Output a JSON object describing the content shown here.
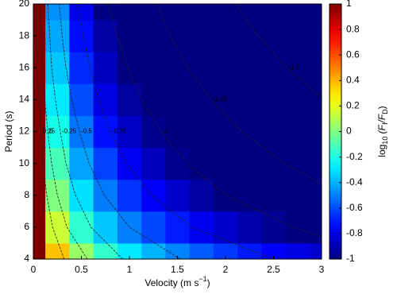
{
  "chart_data": {
    "type": "contour",
    "x_label": [
      "Velocity (m s",
      "−1",
      ")"
    ],
    "y_label": "Period (s)",
    "colorbar_label": [
      "log",
      "10",
      " (F",
      "I",
      "/F",
      "D",
      ")"
    ],
    "x": [
      0,
      0.25,
      0.5,
      0.75,
      1,
      1.25,
      1.5,
      1.75,
      2,
      2.25,
      2.5,
      2.75,
      3
    ],
    "y": [
      4,
      6,
      8,
      10,
      12,
      14,
      16,
      18,
      20
    ],
    "z": [
      [
        1,
        0.37,
        0.05,
        -0.15,
        -0.29,
        -0.4,
        -0.49,
        -0.57,
        -0.64,
        -0.7,
        -0.75,
        -0.8,
        -0.84
      ],
      [
        1,
        0.15,
        -0.16,
        -0.36,
        -0.5,
        -0.61,
        -0.7,
        -0.78,
        -0.85,
        -0.91,
        -0.96,
        -1.01,
        -1.06
      ],
      [
        1,
        0.0,
        -0.31,
        -0.51,
        -0.65,
        -0.76,
        -0.85,
        -0.93,
        -1.0,
        -1.06,
        -1.11,
        -1.16,
        -1.21
      ],
      [
        1,
        -0.11,
        -0.43,
        -0.62,
        -0.77,
        -0.88,
        -0.97,
        -1.05,
        -1.11,
        -1.17,
        -1.23,
        -1.28,
        -1.32
      ],
      [
        1,
        -0.21,
        -0.52,
        -0.72,
        -0.86,
        -0.97,
        -1.06,
        -1.14,
        -1.21,
        -1.27,
        -1.32,
        -1.37,
        -1.42
      ],
      [
        1,
        -0.29,
        -0.6,
        -0.8,
        -0.94,
        -1.05,
        -1.14,
        -1.22,
        -1.29,
        -1.35,
        -1.4,
        -1.45,
        -1.5
      ],
      [
        1,
        -0.36,
        -0.67,
        -0.87,
        -1.01,
        -1.12,
        -1.21,
        -1.29,
        -1.36,
        -1.42,
        -1.47,
        -1.52,
        -1.57
      ],
      [
        1,
        -0.42,
        -0.73,
        -0.93,
        -1.07,
        -1.18,
        -1.27,
        -1.35,
        -1.42,
        -1.48,
        -1.53,
        -1.58,
        -1.63
      ],
      [
        1,
        -0.47,
        -0.79,
        -0.99,
        -1.13,
        -1.24,
        -1.33,
        -1.41,
        -1.48,
        -1.54,
        -1.59,
        -1.64,
        -1.68
      ]
    ],
    "contours": [
      {
        "level": 0.25,
        "x": [
          0.32,
          0.2,
          0.14,
          0.1,
          0.08,
          0.06,
          0.04,
          0.03,
          0.03
        ],
        "y": [
          4,
          6,
          8,
          10,
          12,
          14,
          16,
          18,
          20
        ]
      },
      {
        "level": 0,
        "x": [
          0.56,
          0.35,
          0.25,
          0.19,
          0.15,
          0.12,
          0.1,
          0.08,
          0.07
        ],
        "y": [
          4,
          6,
          8,
          10,
          12,
          14,
          16,
          18,
          20
        ]
      },
      {
        "level": -0.25,
        "x": [
          0.93,
          0.6,
          0.44,
          0.34,
          0.28,
          0.23,
          0.19,
          0.17,
          0.15
        ],
        "y": [
          4,
          6,
          8,
          10,
          12,
          14,
          16,
          18,
          20
        ]
      },
      {
        "level": -0.5,
        "x": [
          1.53,
          1.0,
          0.74,
          0.58,
          0.48,
          0.4,
          0.34,
          0.3,
          0.27
        ],
        "y": [
          4,
          6,
          8,
          10,
          12,
          14,
          16,
          18,
          20
        ]
      },
      {
        "level": -0.75,
        "x": [
          2.5,
          1.65,
          1.23,
          0.97,
          0.8,
          0.68,
          0.59,
          0.52,
          0.46
        ],
        "y": [
          4,
          6,
          8,
          10,
          12,
          14,
          16,
          18,
          20
        ]
      },
      {
        "level": -1,
        "x": [
          3,
          2.7,
          2.01,
          1.6,
          1.33,
          1.13,
          0.98,
          0.87,
          0.78
        ],
        "y": [
          5.41,
          6,
          8,
          10,
          12,
          14,
          16,
          18,
          20
        ]
      },
      {
        "level": -1.25,
        "x": [
          3,
          2.61,
          2.17,
          1.85,
          1.61,
          1.43,
          1.28
        ],
        "y": [
          8.72,
          10,
          12,
          14,
          16,
          18,
          20
        ]
      },
      {
        "level": -1.5,
        "x": [
          3,
          2.64,
          2.34,
          2.1
        ],
        "y": [
          14.1,
          16,
          18,
          20
        ]
      }
    ],
    "xlim": [
      0,
      3
    ],
    "ylim": [
      4,
      20
    ],
    "xticks": [
      0,
      0.5,
      1,
      1.5,
      2,
      2.5,
      3
    ],
    "yticks": [
      4,
      6,
      8,
      10,
      12,
      14,
      16,
      18,
      20
    ],
    "clim": [
      -1,
      1
    ],
    "cticks": [
      -1,
      -0.8,
      -0.6,
      -0.4,
      -0.2,
      0,
      0.2,
      0.4,
      0.6,
      0.8,
      1
    ],
    "colormap": "jet"
  }
}
